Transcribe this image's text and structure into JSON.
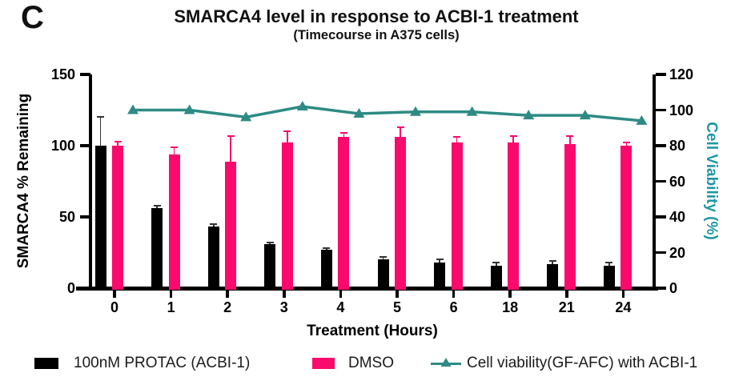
{
  "panel_label": "C",
  "title": "SMARCA4 level in response to ACBI-1 treatment",
  "subtitle": "(Timecourse in A375 cells)",
  "axes": {
    "left": {
      "label": "SMARCA4 % Remaining",
      "ticks": [
        0,
        50,
        100,
        150
      ]
    },
    "right": {
      "label": "Cell Viability (%)",
      "ticks": [
        0,
        20,
        40,
        60,
        80,
        100,
        120
      ]
    },
    "x": {
      "label": "Treatment (Hours)"
    }
  },
  "legend": {
    "items": [
      {
        "marker": "bar-swatch",
        "label": "100nM PROTAC (ACBI-1)"
      },
      {
        "marker": "bar-swatch",
        "label": "DMSO"
      },
      {
        "marker": "line-triangle",
        "label": "Cell viability(GF-AFC) with ACBI-1"
      }
    ]
  },
  "colors": {
    "protac_bar": "#000000",
    "dmso_bar": "#FA0A6C",
    "viability_line": "#2E8B84",
    "viability_axis_label": "#1E97A1",
    "axis": "#000000"
  },
  "chart_data": {
    "type": "bar",
    "categories": [
      "0",
      "1",
      "2",
      "3",
      "4",
      "5",
      "6",
      "18",
      "21",
      "24"
    ],
    "series": [
      {
        "name": "100nM PROTAC (ACBI-1)",
        "type": "bar",
        "axis": "left",
        "color": "#000000",
        "values": [
          100,
          56,
          43,
          31,
          27,
          20,
          18,
          16,
          17,
          16
        ],
        "errors_plus": [
          20,
          2,
          2,
          1,
          1,
          2,
          2,
          2,
          2,
          2
        ]
      },
      {
        "name": "DMSO",
        "type": "bar",
        "axis": "left",
        "color": "#FA0A6C",
        "values": [
          100,
          94,
          89,
          102,
          106,
          106,
          102,
          102,
          101,
          100
        ],
        "errors_plus": [
          3,
          5,
          18,
          8,
          3,
          7,
          4,
          5,
          6,
          2
        ]
      },
      {
        "name": "Cell viability(GF-AFC) with ACBI-1",
        "type": "line",
        "axis": "right",
        "color": "#2E8B84",
        "values": [
          100,
          100,
          96,
          102,
          98,
          99,
          99,
          97,
          97,
          94
        ]
      }
    ],
    "title": "SMARCA4 level in response to ACBI-1 treatment",
    "subtitle": "(Timecourse in A375 cells)",
    "xlabel": "Treatment (Hours)",
    "ylabel_left": "SMARCA4 % Remaining",
    "ylabel_right": "Cell Viability (%)",
    "ylim_left": [
      0,
      150
    ],
    "ylim_right": [
      0,
      120
    ],
    "grid": false,
    "legend_position": "bottom"
  }
}
